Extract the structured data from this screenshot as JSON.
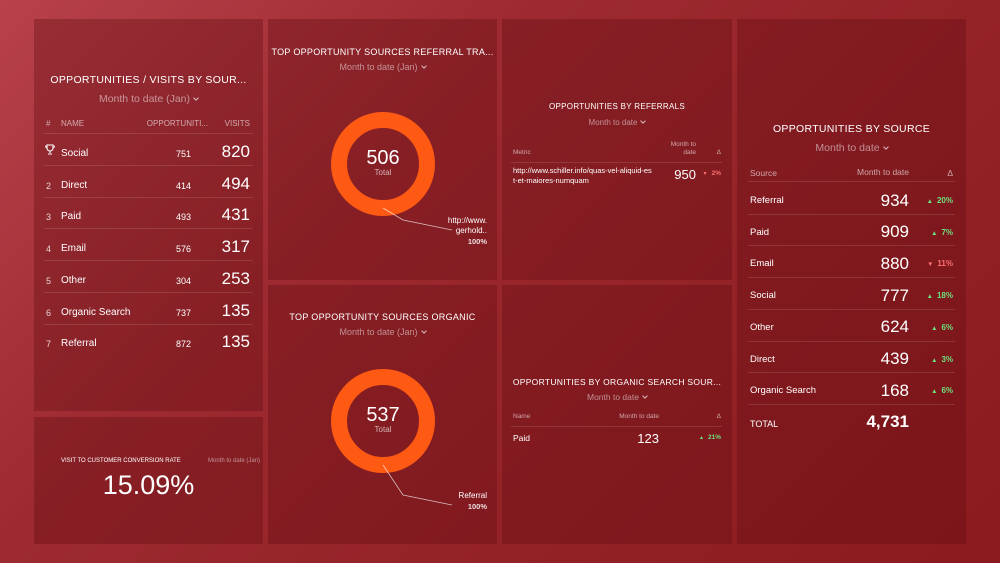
{
  "visits_panel": {
    "title": "OPPORTUNITIES / VISITS BY SOUR...",
    "period": "Month to date (Jan)",
    "columns": [
      "#",
      "NAME",
      "OPPORTUNITI...",
      "VISITS"
    ],
    "rows": [
      [
        null,
        "Social",
        "751",
        "820"
      ],
      [
        "2",
        "Direct",
        "414",
        "494"
      ],
      [
        "3",
        "Paid",
        "493",
        "431"
      ],
      [
        "4",
        "Email",
        "576",
        "317"
      ],
      [
        "5",
        "Other",
        "304",
        "253"
      ],
      [
        "6",
        "Organic Search",
        "737",
        "135"
      ],
      [
        "7",
        "Referral",
        "872",
        "135"
      ]
    ]
  },
  "conversion_panel": {
    "title": "VISIT TO CUSTOMER CONVERSION RATE",
    "period": "Month to date (Jan)",
    "value": "15.09%"
  },
  "referral_donut": {
    "title": "TOP OPPORTUNITY SOURCES REFERRAL TRA...",
    "period": "Month to date (Jan)",
    "total": "506",
    "total_label": "Total",
    "slice_label": "http://www.gerhold..",
    "slice_percent": "100%",
    "color": "#ff5a14"
  },
  "organic_donut": {
    "title": "TOP OPPORTUNITY SOURCES ORGANIC",
    "period": "Month to date (Jan)",
    "total": "537",
    "total_label": "Total",
    "slice_label": "Referral",
    "slice_percent": "100%",
    "color": "#ff5a14"
  },
  "referrals_panel": {
    "title": "OPPORTUNITIES BY REFERRALS",
    "period": "Month to date",
    "columns": [
      "Metric",
      "Month to date",
      "Δ"
    ],
    "rows": [
      {
        "name": "http://www.schiller.info/quas-vel-aliquid-est-et-maiores-numquam",
        "value": "950",
        "delta": "2%",
        "direction": "down"
      }
    ]
  },
  "organic_panel": {
    "title": "OPPORTUNITIES BY ORGANIC SEARCH SOUR...",
    "period": "Month to date",
    "columns": [
      "Name",
      "Month to date",
      "Δ"
    ],
    "rows": [
      {
        "name": "Paid",
        "value": "123",
        "delta": "21%",
        "direction": "up"
      }
    ]
  },
  "source_panel": {
    "title": "OPPORTUNITIES BY SOURCE",
    "period": "Month to date",
    "columns": [
      "Source",
      "Month to date",
      "Δ"
    ],
    "rows": [
      {
        "name": "Referral",
        "value": "934",
        "delta": "20%",
        "direction": "up"
      },
      {
        "name": "Paid",
        "value": "909",
        "delta": "7%",
        "direction": "up"
      },
      {
        "name": "Email",
        "value": "880",
        "delta": "11%",
        "direction": "down"
      },
      {
        "name": "Social",
        "value": "777",
        "delta": "18%",
        "direction": "up"
      },
      {
        "name": "Other",
        "value": "624",
        "delta": "6%",
        "direction": "up"
      },
      {
        "name": "Direct",
        "value": "439",
        "delta": "3%",
        "direction": "up"
      },
      {
        "name": "Organic Search",
        "value": "168",
        "delta": "6%",
        "direction": "up"
      }
    ],
    "total_label": "TOTAL",
    "total": "4,731"
  }
}
